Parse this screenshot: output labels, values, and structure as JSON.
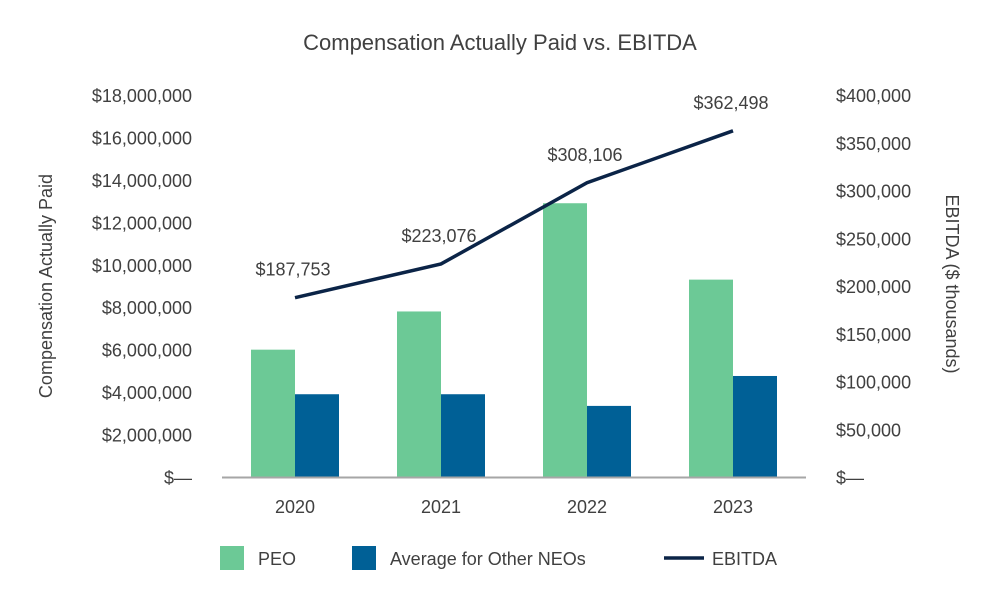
{
  "chart_data": {
    "type": "bar+line",
    "title": "Compensation Actually Paid vs. EBITDA",
    "ylabel": "Compensation Actually Paid",
    "y2label": "EBITDA ($ thousands)",
    "categories": [
      "2020",
      "2021",
      "2022",
      "2023"
    ],
    "ylim": [
      0,
      18000000
    ],
    "y2lim": [
      0,
      400000
    ],
    "yticks": [
      "$—",
      "$2,000,000",
      "$4,000,000",
      "$6,000,000",
      "$8,000,000",
      "$10,000,000",
      "$12,000,000",
      "$14,000,000",
      "$16,000,000",
      "$18,000,000"
    ],
    "y2ticks": [
      "$—",
      "$50,000",
      "$100,000",
      "$150,000",
      "$200,000",
      "$250,000",
      "$300,000",
      "$350,000",
      "$400,000"
    ],
    "grid": false,
    "legend_placement": "bottom",
    "series": [
      {
        "name": "PEO",
        "type": "bar",
        "axis": "left",
        "color": "#6CC996",
        "values": [
          6000000,
          7800000,
          12900000,
          9300000
        ]
      },
      {
        "name": "Average for Other NEOs",
        "type": "bar",
        "axis": "left",
        "color": "#006096",
        "values": [
          3900000,
          3900000,
          3350000,
          4760000
        ]
      },
      {
        "name": "EBITDA",
        "type": "line",
        "axis": "right",
        "color": "#0B2447",
        "values": [
          187753,
          223076,
          308106,
          362498
        ],
        "labels": [
          "$187,753",
          "$223,076",
          "$308,106",
          "$362,498"
        ]
      }
    ]
  }
}
